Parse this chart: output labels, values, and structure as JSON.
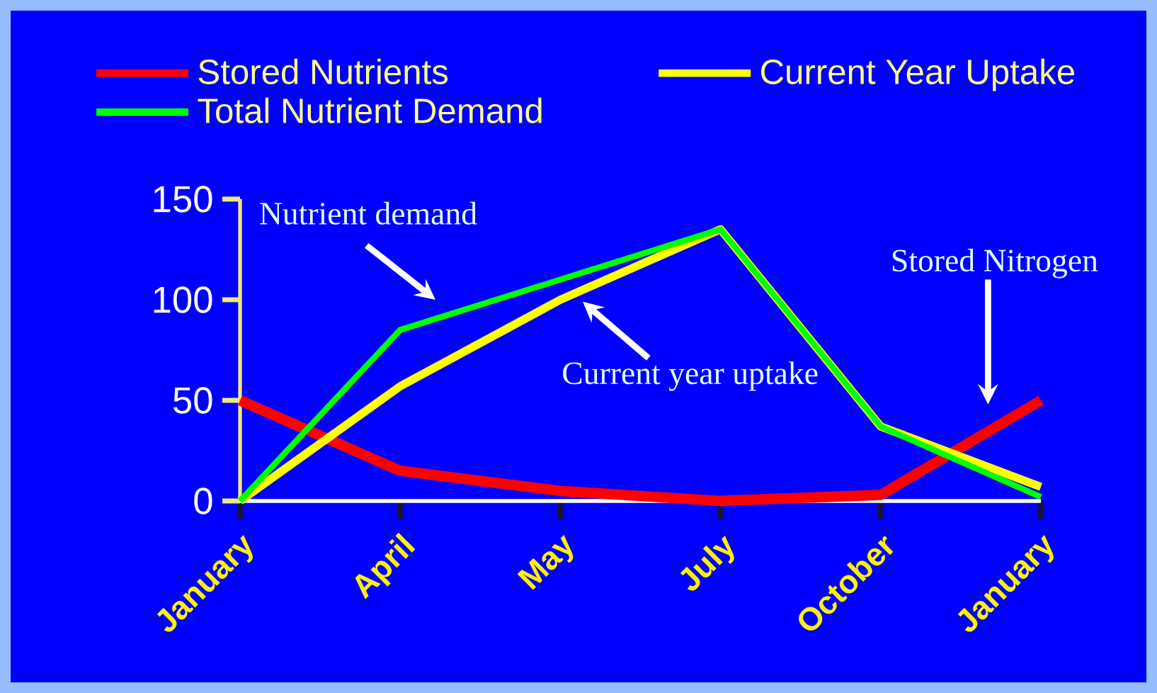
{
  "chart_data": {
    "type": "line",
    "categories": [
      "January",
      "April",
      "May",
      "July",
      "October",
      "January"
    ],
    "series": [
      {
        "name": "Stored Nutrients",
        "color": "#ff0000",
        "values": [
          50,
          15,
          5,
          0,
          3,
          50
        ]
      },
      {
        "name": "Current Year Uptake",
        "color": "#ffff00",
        "values": [
          0,
          57,
          100,
          135,
          37,
          7
        ]
      },
      {
        "name": "Total Nutrient Demand",
        "color": "#00ff00",
        "values": [
          0,
          85,
          110,
          135,
          37,
          2
        ]
      }
    ],
    "ylim": [
      0,
      150
    ],
    "yticks": [
      0,
      50,
      100,
      150
    ],
    "legend": "top",
    "grid": false,
    "annotations": [
      "Nutrient demand",
      "Current year uptake",
      "Stored Nitrogen"
    ]
  }
}
